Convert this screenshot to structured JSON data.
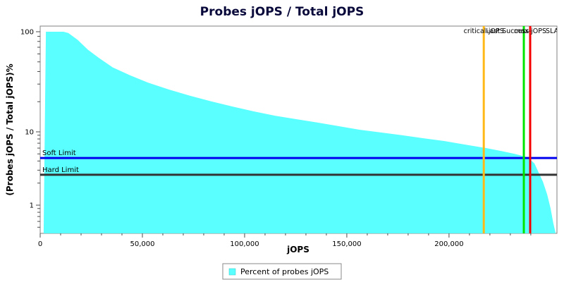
{
  "title": "Probes jOPS / Total jOPS",
  "chart_data": {
    "type": "area",
    "title": "Probes jOPS / Total jOPS",
    "xlabel": "jOPS",
    "ylabel": "(Probes jOPS / Total jOPS)%",
    "x_axis": {
      "min": 0,
      "max": 252800,
      "major_tick_values": [
        0,
        50000,
        100000,
        150000,
        200000
      ],
      "major_tick_labels": [
        "0",
        "50,000",
        "100,000",
        "150,000",
        "200,000"
      ],
      "minor_tick_step": 10000
    },
    "y_axis": {
      "scale": "log",
      "unit": "%",
      "major_tick_values": [
        100,
        10,
        1
      ],
      "major_tick_labels": [
        "100",
        "10",
        "1"
      ],
      "minor_tick_values": [
        90,
        80,
        70,
        60,
        50,
        40,
        30,
        20,
        9,
        8,
        7,
        6,
        5,
        4,
        3,
        2,
        0.9,
        0.8,
        0.7,
        0.6,
        0.5
      ],
      "min": 0.41,
      "max": 112
    },
    "series": [
      {
        "name": "Percent of probes jOPS",
        "color": "#5AFFFF",
        "points": [
          [
            1700,
            0.41
          ],
          [
            2800,
            100
          ],
          [
            11400,
            100
          ],
          [
            13800,
            97
          ],
          [
            18300,
            83
          ],
          [
            23400,
            66
          ],
          [
            28600,
            55
          ],
          [
            35500,
            44
          ],
          [
            44100,
            36.6
          ],
          [
            52800,
            31
          ],
          [
            63100,
            26.4
          ],
          [
            73400,
            22.9
          ],
          [
            83800,
            20.1
          ],
          [
            94100,
            17.9
          ],
          [
            104500,
            16.0
          ],
          [
            114800,
            14.5
          ],
          [
            125200,
            13.4
          ],
          [
            135500,
            12.4
          ],
          [
            145900,
            11.4
          ],
          [
            156200,
            10.5
          ],
          [
            166600,
            9.8
          ],
          [
            176900,
            9.0
          ],
          [
            187200,
            8.2
          ],
          [
            197600,
            7.5
          ],
          [
            207900,
            6.7
          ],
          [
            218300,
            6.0
          ],
          [
            225200,
            5.5
          ],
          [
            232100,
            5.0
          ],
          [
            237200,
            4.6
          ],
          [
            239700,
            4.2
          ],
          [
            241800,
            3.7
          ],
          [
            243800,
            2.8
          ],
          [
            245900,
            2.1
          ],
          [
            248000,
            1.4
          ],
          [
            249700,
            0.9
          ],
          [
            251000,
            0.57
          ],
          [
            252100,
            0.42
          ]
        ]
      }
    ],
    "v_markers": [
      {
        "label": "critical-jOPS",
        "x": 217000,
        "color": "#FFB918"
      },
      {
        "label": "Last Success",
        "x": 236600,
        "color": "#00E500"
      },
      {
        "label": "max-jOPS",
        "x": 239700,
        "color": "#F40000"
      }
    ],
    "h_markers": [
      {
        "label": "Soft Limit",
        "y": 4.4,
        "color": "#0000EE"
      },
      {
        "label": "Hard Limit",
        "y": 2.6,
        "color": "#333333"
      }
    ],
    "top_labels": [
      {
        "text": "critical-jOPS",
        "x": 217000,
        "anchor": "middle"
      },
      {
        "text": "Last Success",
        "x": 228600,
        "anchor": "middle"
      },
      {
        "text": "max-jOPS",
        "x": 239700,
        "anchor": "middle"
      },
      {
        "text": "SLA",
        "x": 247300,
        "anchor": "start"
      }
    ],
    "legend": {
      "label": "Percent of probes jOPS",
      "position": "bottom"
    },
    "grid": false
  },
  "colors": {
    "plot_border": "#808080",
    "tick": "#4d4d4d",
    "background": "#ffffff",
    "series_fill": "#5AFFFF"
  }
}
